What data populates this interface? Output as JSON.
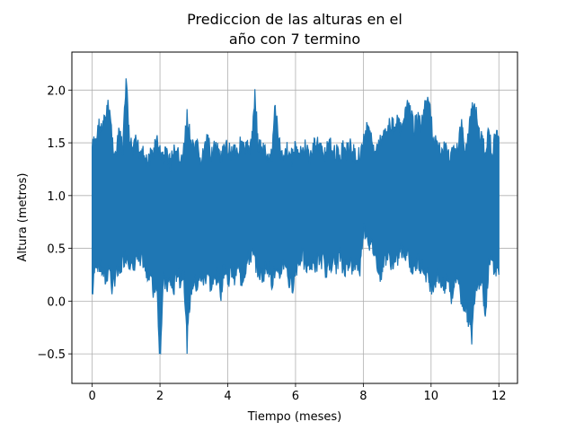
{
  "chart_data": {
    "type": "line",
    "title_lines": [
      "Prediccion de las alturas en el",
      "año con 7 termino"
    ],
    "xlabel": "Tiempo (meses)",
    "ylabel": "Altura (metros)",
    "xlim": [
      -0.6,
      12.55
    ],
    "ylim": [
      -0.78,
      2.36
    ],
    "x_ticks": [
      0,
      2,
      4,
      6,
      8,
      10,
      12
    ],
    "x_tick_labels": [
      "0",
      "2",
      "4",
      "6",
      "8",
      "10",
      "12"
    ],
    "y_ticks": [
      -0.5,
      0.0,
      0.5,
      1.0,
      1.5,
      2.0
    ],
    "y_tick_labels": [
      "−0.5",
      "0.0",
      "0.5",
      "1.0",
      "1.5",
      "2.0"
    ],
    "grid": true,
    "series": [
      {
        "color": "#1f77b4",
        "x": [
          0,
          0.1,
          0.2,
          0.3,
          0.4,
          0.5,
          0.6,
          0.7,
          0.8,
          0.9,
          1.0,
          1.1,
          1.2,
          1.3,
          1.4,
          1.5,
          1.6,
          1.7,
          1.8,
          1.9,
          2.0,
          2.1,
          2.2,
          2.3,
          2.4,
          2.5,
          2.6,
          2.7,
          2.8,
          2.9,
          3.0,
          3.1,
          3.2,
          3.3,
          3.4,
          3.5,
          3.6,
          3.7,
          3.8,
          3.9,
          4.0,
          4.1,
          4.2,
          4.3,
          4.4,
          4.5,
          4.6,
          4.7,
          4.8,
          4.9,
          5.0,
          5.1,
          5.2,
          5.3,
          5.4,
          5.5,
          5.6,
          5.7,
          5.8,
          5.9,
          6.0,
          6.1,
          6.2,
          6.3,
          6.4,
          6.5,
          6.6,
          6.7,
          6.8,
          6.9,
          7.0,
          7.1,
          7.2,
          7.3,
          7.4,
          7.5,
          7.6,
          7.7,
          7.8,
          7.9,
          8.0,
          8.1,
          8.2,
          8.3,
          8.4,
          8.5,
          8.6,
          8.7,
          8.8,
          8.9,
          9.0,
          9.1,
          9.2,
          9.3,
          9.4,
          9.5,
          9.6,
          9.7,
          9.8,
          9.9,
          10.0,
          10.1,
          10.2,
          10.3,
          10.4,
          10.5,
          10.6,
          10.7,
          10.8,
          10.9,
          11.0,
          11.1,
          11.2,
          11.3,
          11.4,
          11.5,
          11.6,
          11.7,
          11.8,
          11.9,
          12.0
        ],
        "upper": [
          1.55,
          1.6,
          1.75,
          1.7,
          1.85,
          1.95,
          1.6,
          1.45,
          1.7,
          1.5,
          2.2,
          1.6,
          1.5,
          1.6,
          1.5,
          1.55,
          1.4,
          1.45,
          1.5,
          1.6,
          1.5,
          1.45,
          1.5,
          1.4,
          1.5,
          1.5,
          1.4,
          1.5,
          1.85,
          1.6,
          1.5,
          1.55,
          1.4,
          1.5,
          1.6,
          1.5,
          1.55,
          1.5,
          1.45,
          1.5,
          1.55,
          1.5,
          1.55,
          1.5,
          1.6,
          1.5,
          1.55,
          1.55,
          2.08,
          1.55,
          1.55,
          1.5,
          1.4,
          1.5,
          1.95,
          1.6,
          1.45,
          1.55,
          1.5,
          1.45,
          1.55,
          1.45,
          1.5,
          1.55,
          1.45,
          1.5,
          1.6,
          1.55,
          1.5,
          1.5,
          1.55,
          1.55,
          1.5,
          1.45,
          1.55,
          1.5,
          1.55,
          1.5,
          1.45,
          1.5,
          1.6,
          1.7,
          1.65,
          1.6,
          1.5,
          1.6,
          1.7,
          1.75,
          1.75,
          1.75,
          1.8,
          1.7,
          1.75,
          1.95,
          1.85,
          1.75,
          1.8,
          1.75,
          1.9,
          2.0,
          1.8,
          1.6,
          1.55,
          1.5,
          1.55,
          1.45,
          1.5,
          1.55,
          1.5,
          1.85,
          1.45,
          1.65,
          1.9,
          1.95,
          1.7,
          1.6,
          1.5,
          1.75,
          1.45,
          1.7,
          1.55
        ],
        "lower": [
          -0.03,
          0.3,
          0.25,
          0.2,
          0.1,
          0.25,
          0.0,
          0.2,
          0.15,
          0.3,
          0.35,
          0.3,
          0.2,
          0.35,
          0.25,
          0.3,
          0.15,
          0.2,
          0.0,
          0.1,
          -0.62,
          0.1,
          0.05,
          0.1,
          0.0,
          0.2,
          0.1,
          0.2,
          -0.5,
          0.0,
          0.1,
          0.05,
          0.15,
          0.1,
          0.2,
          0.05,
          0.1,
          0.15,
          0.0,
          0.25,
          0.1,
          0.2,
          0.15,
          0.25,
          0.1,
          0.2,
          0.3,
          0.35,
          0.3,
          0.2,
          0.15,
          0.2,
          0.25,
          0.1,
          0.2,
          0.1,
          0.25,
          0.3,
          0.1,
          0.05,
          0.2,
          0.3,
          0.35,
          0.2,
          0.3,
          0.25,
          0.25,
          0.3,
          0.3,
          0.2,
          0.25,
          0.3,
          0.25,
          0.35,
          0.2,
          0.25,
          0.3,
          0.2,
          0.3,
          0.2,
          0.6,
          0.55,
          0.45,
          0.4,
          0.3,
          0.15,
          0.3,
          0.35,
          0.3,
          0.25,
          0.3,
          0.4,
          0.35,
          0.4,
          0.25,
          0.2,
          0.3,
          0.25,
          0.2,
          0.15,
          0.05,
          0.1,
          0.15,
          0.1,
          0.0,
          0.15,
          -0.05,
          0.1,
          0.15,
          -0.1,
          -0.12,
          -0.25,
          -0.43,
          0.05,
          0.1,
          0.15,
          -0.25,
          0.25,
          0.3,
          0.2,
          0.25
        ]
      }
    ]
  }
}
